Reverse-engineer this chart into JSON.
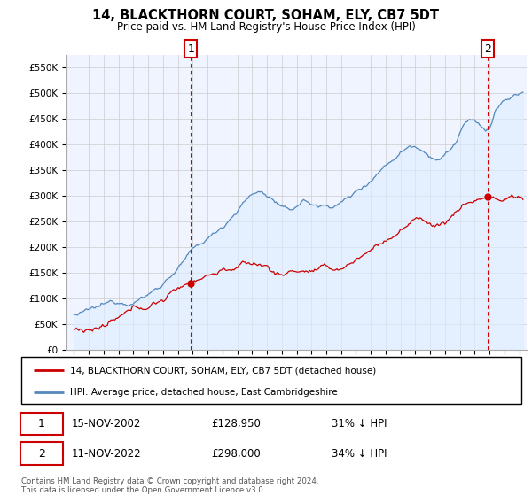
{
  "title": "14, BLACKTHORN COURT, SOHAM, ELY, CB7 5DT",
  "subtitle": "Price paid vs. HM Land Registry's House Price Index (HPI)",
  "ylim": [
    0,
    575000
  ],
  "xlim_start": 1994.5,
  "xlim_end": 2025.5,
  "purchase1": {
    "date_num": 2002.875,
    "price": 128950,
    "label": "1",
    "date_str": "15-NOV-2002",
    "pct": "31% ↓ HPI"
  },
  "purchase2": {
    "date_num": 2022.875,
    "price": 298000,
    "label": "2",
    "date_str": "11-NOV-2022",
    "pct": "34% ↓ HPI"
  },
  "legend_property": "14, BLACKTHORN COURT, SOHAM, ELY, CB7 5DT (detached house)",
  "legend_hpi": "HPI: Average price, detached house, East Cambridgeshire",
  "footer": "Contains HM Land Registry data © Crown copyright and database right 2024.\nThis data is licensed under the Open Government Licence v3.0.",
  "property_color": "#cc0000",
  "hpi_color": "#5588bb",
  "hpi_fill_color": "#ddeeff",
  "vline_color": "#cc0000",
  "grid_color": "#cccccc",
  "background_color": "#ffffff",
  "plot_bg_color": "#f0f4ff"
}
